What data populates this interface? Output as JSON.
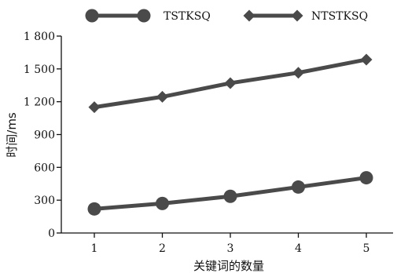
{
  "chart_data": {
    "type": "line",
    "title": "",
    "xlabel": "关键词的数量",
    "ylabel": "时间/ms",
    "x": [
      1,
      2,
      3,
      4,
      5
    ],
    "x_tick_labels": [
      "1",
      "2",
      "3",
      "4",
      "5"
    ],
    "ylim": [
      0,
      1800
    ],
    "y_ticks": [
      0,
      300,
      600,
      900,
      1200,
      1500,
      1800
    ],
    "y_tick_labels": [
      "0",
      "300",
      "600",
      "900",
      "1 200",
      "1 500",
      "1 800"
    ],
    "grid": false,
    "legend_position": "top",
    "series": [
      {
        "name": "TSTKSQ",
        "marker": "circle",
        "color": "#4a4a4a",
        "values": [
          220,
          270,
          335,
          420,
          505
        ]
      },
      {
        "name": "NTSTKSQ",
        "marker": "diamond",
        "color": "#4a4a4a",
        "values": [
          1150,
          1245,
          1370,
          1465,
          1585
        ]
      }
    ]
  }
}
